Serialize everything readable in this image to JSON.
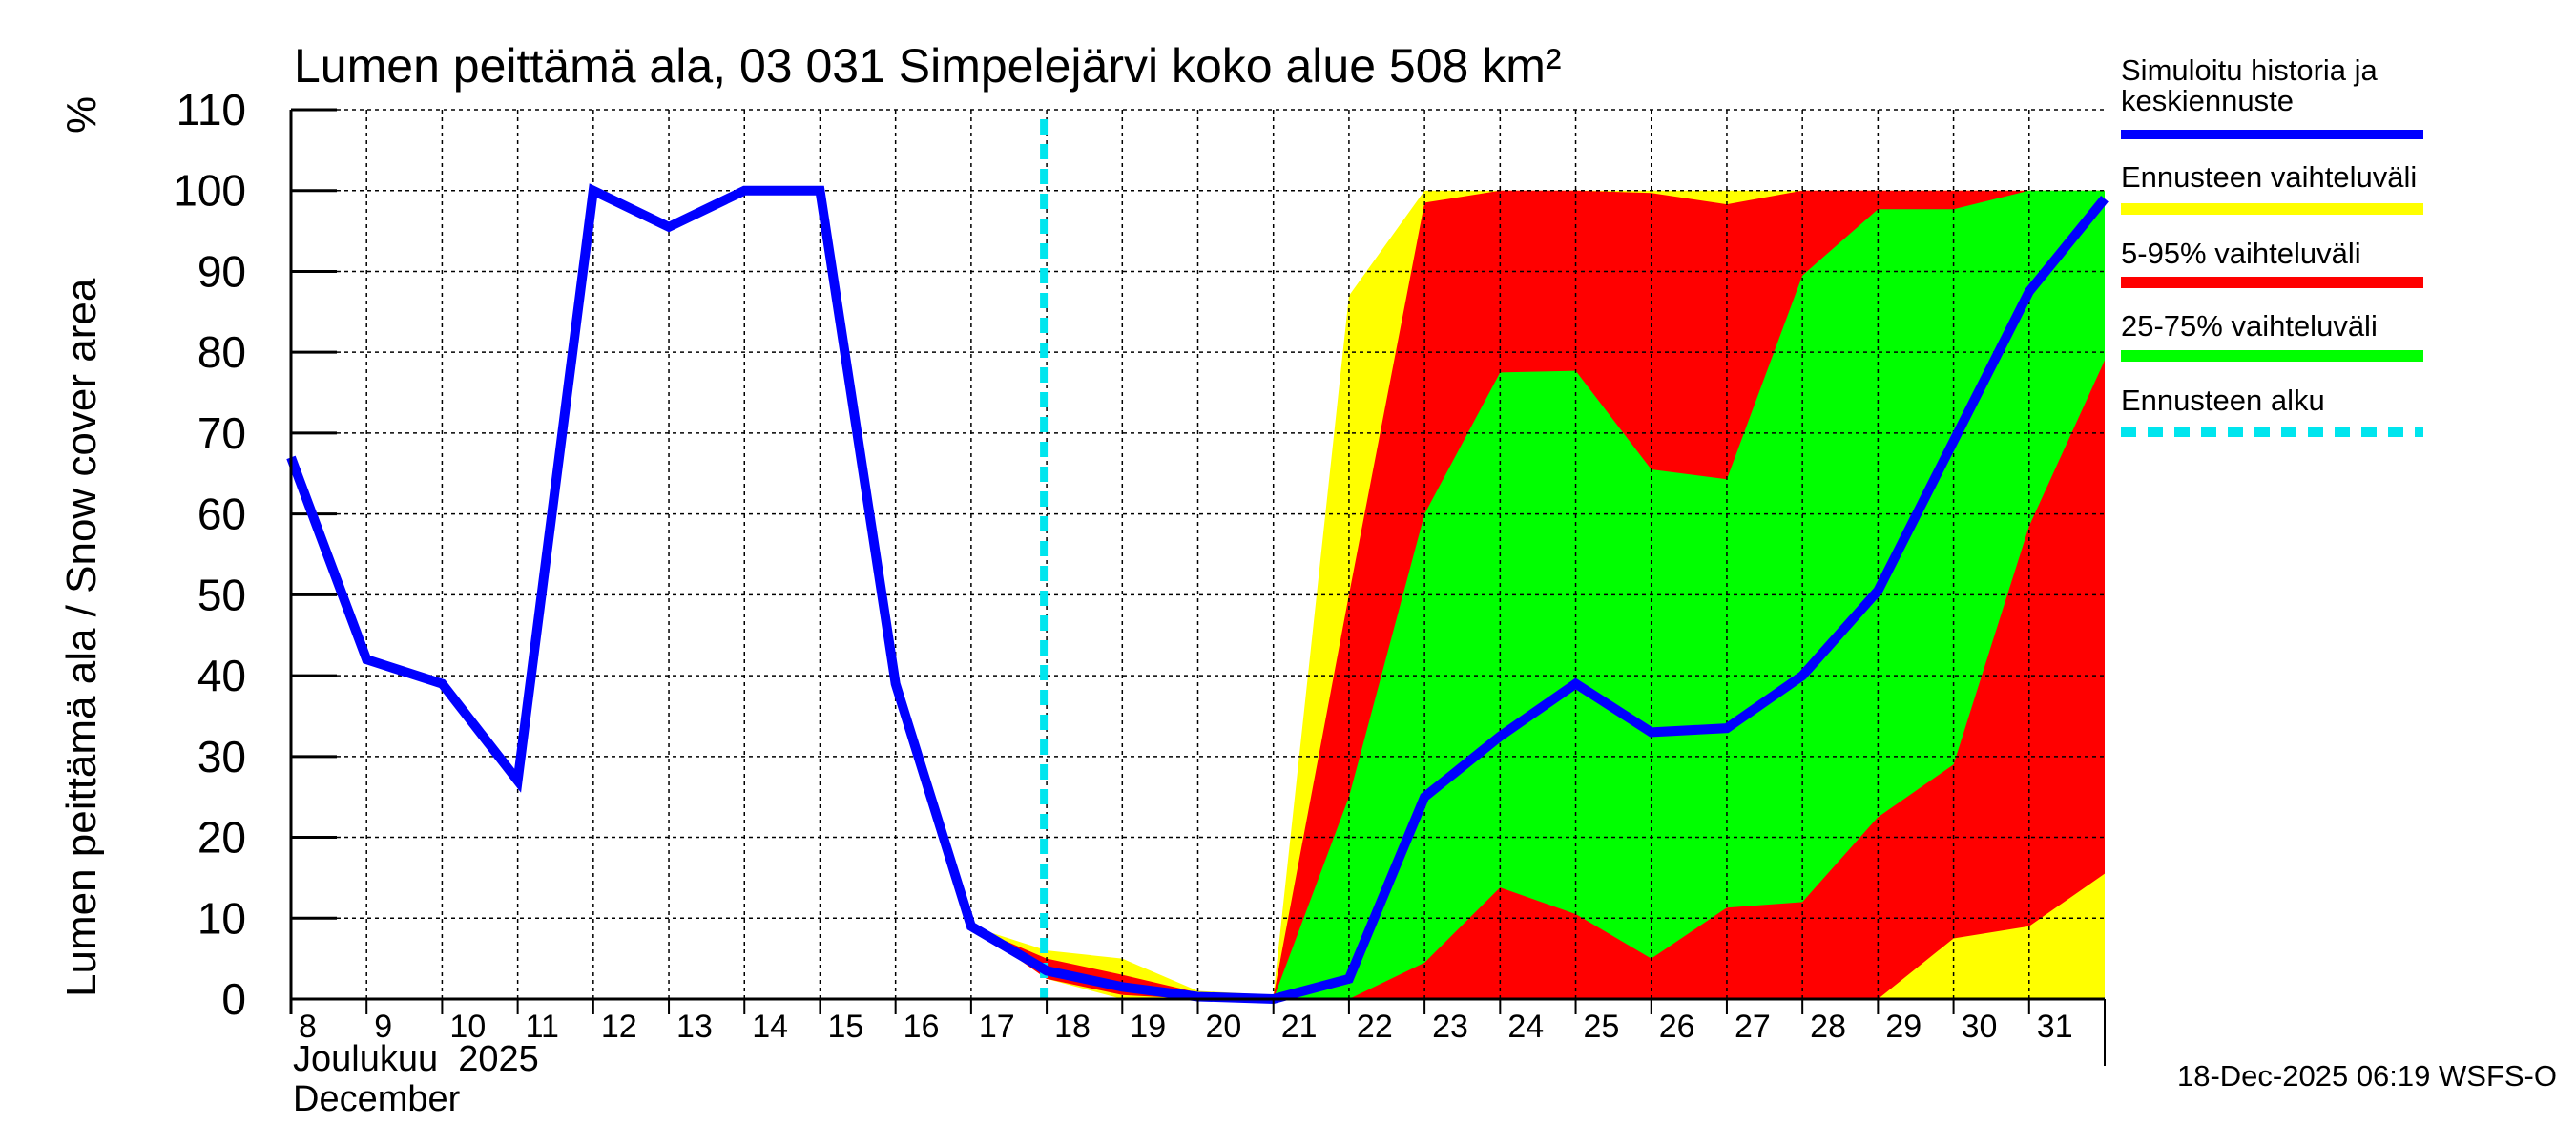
{
  "chart_data": {
    "type": "area",
    "title": "Lumen peittämä ala, 03 031 Simpelejärvi koko alue 508 km²",
    "ylabel": "Lumen peittämä ala / Snow cover area",
    "yunit": "%",
    "xlabel_line1": "Joulukuu  2025",
    "xlabel_line2": "December",
    "ylim": [
      0,
      110
    ],
    "yticks": [
      0,
      10,
      20,
      30,
      40,
      50,
      60,
      70,
      80,
      90,
      100,
      110
    ],
    "grid": true,
    "x_tick_labels": [
      "8",
      "9",
      "10",
      "11",
      "12",
      "13",
      "14",
      "15",
      "16",
      "17",
      "18",
      "19",
      "20",
      "21",
      "22",
      "23",
      "24",
      "25",
      "26",
      "27",
      "28",
      "29",
      "30",
      "31"
    ],
    "forecast_start_day_index": 10,
    "history_and_median": {
      "name": "Simuloitu historia ja keskiennuste",
      "color": "#0000ff",
      "values": [
        67,
        42,
        39,
        27,
        100,
        95.5,
        100,
        100,
        39,
        9,
        3.5,
        1.5,
        0.3,
        0,
        2.5,
        25,
        32.5,
        39,
        33,
        33.5,
        40,
        50.5,
        69,
        87.5,
        99
      ]
    },
    "bands_start_index": 9,
    "bands": [
      {
        "name": "Ennusteen vaihteluväli",
        "color": "#ffff00",
        "upper": [
          9,
          6,
          5,
          1,
          0.5,
          87,
          100,
          100,
          100,
          100,
          100,
          100,
          100,
          100,
          100,
          100
        ],
        "lower": [
          9,
          2.5,
          0,
          0,
          0,
          0,
          0,
          0,
          0,
          0,
          0,
          0,
          0,
          0,
          0,
          0
        ]
      },
      {
        "name": "5-95% vaihteluväli",
        "color": "#ff0000",
        "upper": [
          9,
          5,
          3,
          0.8,
          0.3,
          50,
          98.5,
          100,
          100,
          99.7,
          98.3,
          100,
          100,
          100,
          100,
          100
        ],
        "lower": [
          9,
          2.5,
          0.5,
          0,
          0,
          0,
          0,
          0,
          0,
          0,
          0,
          0,
          0,
          7.5,
          9,
          15.5
        ]
      },
      {
        "name": "25-75% vaihteluväli",
        "color": "#00ff00",
        "upper": [
          9,
          4,
          2,
          0.3,
          0,
          25,
          60,
          77.5,
          77.7,
          65.5,
          64.3,
          89.5,
          97.7,
          97.7,
          100,
          100
        ],
        "lower": [
          9,
          3,
          1,
          0,
          0,
          0,
          4.5,
          13.8,
          10.5,
          5,
          11.3,
          12,
          22.5,
          29,
          58.5,
          79
        ]
      }
    ],
    "forecast_start_legend": {
      "name": "Ennusteen alku",
      "color": "#00e5ee"
    },
    "legend": [
      "Simuloitu historia ja",
      "keskiennuste",
      "Ennusteen vaihteluväli",
      "5-95% vaihteluväli",
      "25-75% vaihteluväli",
      "Ennusteen alku"
    ],
    "legend_placement": "right",
    "footer": "18-Dec-2025 06:19 WSFS-O"
  }
}
